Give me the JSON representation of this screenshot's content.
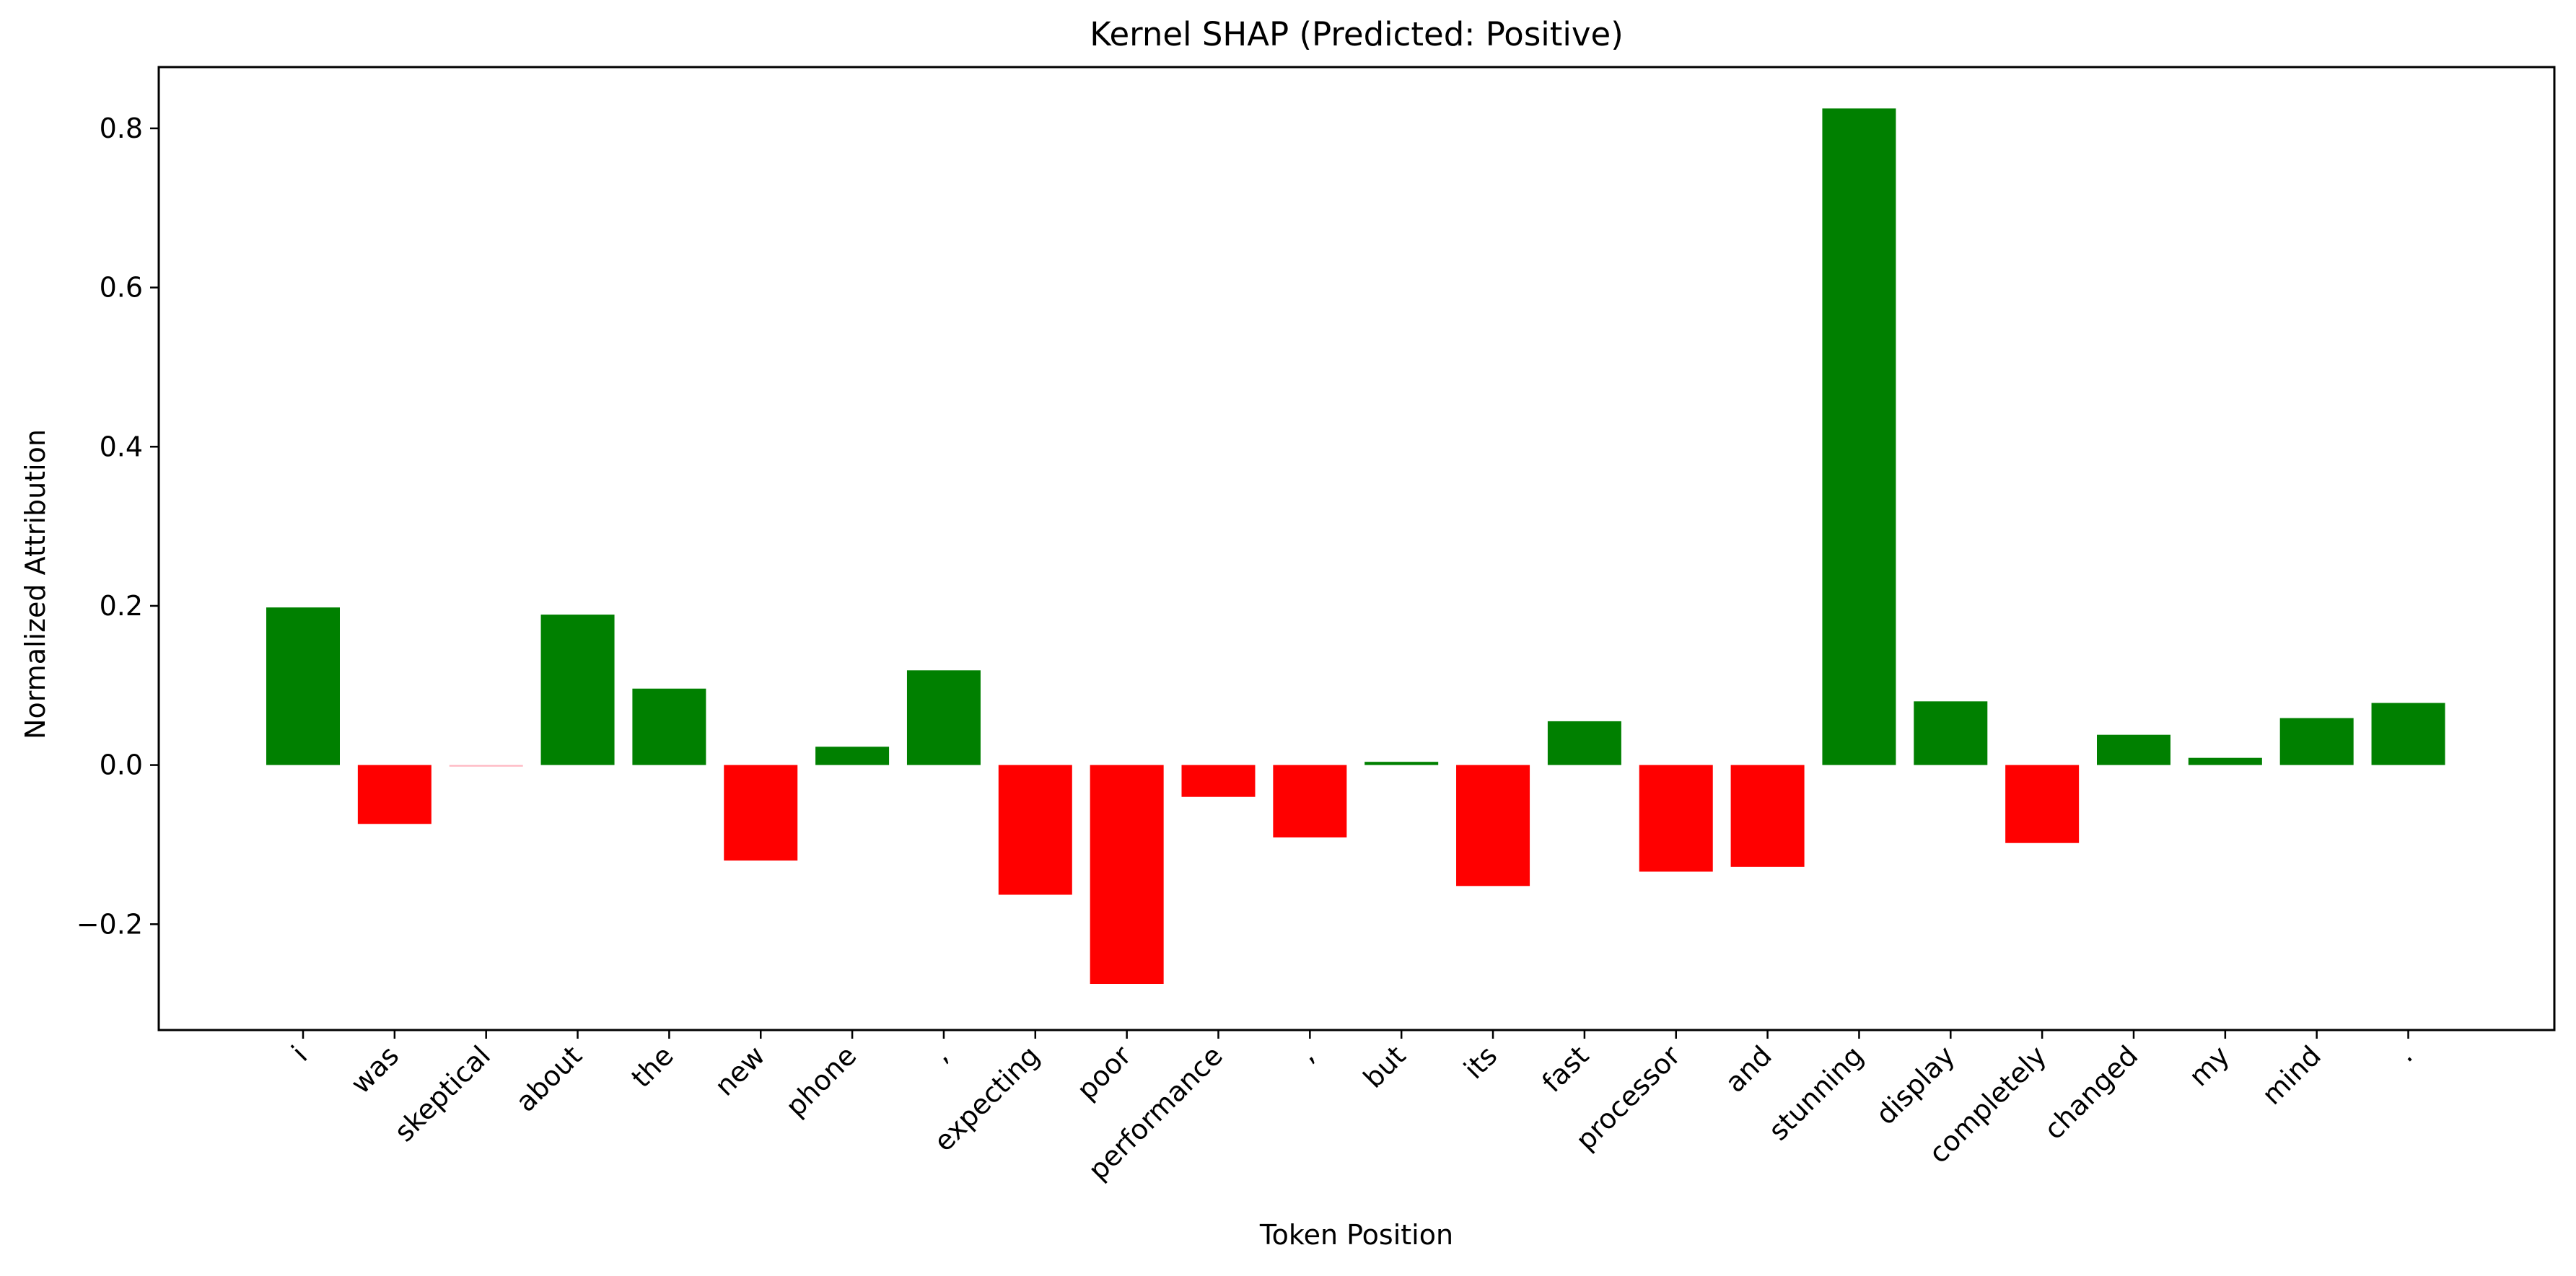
{
  "chart_data": {
    "type": "bar",
    "title": "Kernel SHAP (Predicted: Positive)",
    "xlabel": "Token Position",
    "ylabel": "Normalized Attribution",
    "categories": [
      "i",
      "was",
      "skeptical",
      "about",
      "the",
      "new",
      "phone",
      ",",
      "expecting",
      "poor",
      "performance",
      ",",
      "but",
      "its",
      "fast",
      "processor",
      "and",
      "stunning",
      "display",
      "completely",
      "changed",
      "my",
      "mind",
      "."
    ],
    "values": [
      0.198,
      -0.074,
      -0.002,
      0.189,
      0.096,
      -0.12,
      0.023,
      0.119,
      -0.163,
      -0.275,
      -0.04,
      -0.091,
      0.004,
      -0.152,
      0.055,
      -0.134,
      -0.128,
      0.825,
      0.08,
      -0.098,
      0.038,
      0.009,
      0.059,
      0.078
    ],
    "ylim": [
      -0.333,
      0.877
    ],
    "yticks": [
      -0.2,
      0.0,
      0.2,
      0.4,
      0.6,
      0.8
    ],
    "ytick_labels": [
      "−0.2",
      "0.0",
      "0.2",
      "0.4",
      "0.6",
      "0.8"
    ],
    "grid": false,
    "legend": "none",
    "colors": {
      "positive": "#008000",
      "negative": "#ff0000",
      "near_zero_negative": "#ffb6c1",
      "axis": "#000000"
    }
  }
}
